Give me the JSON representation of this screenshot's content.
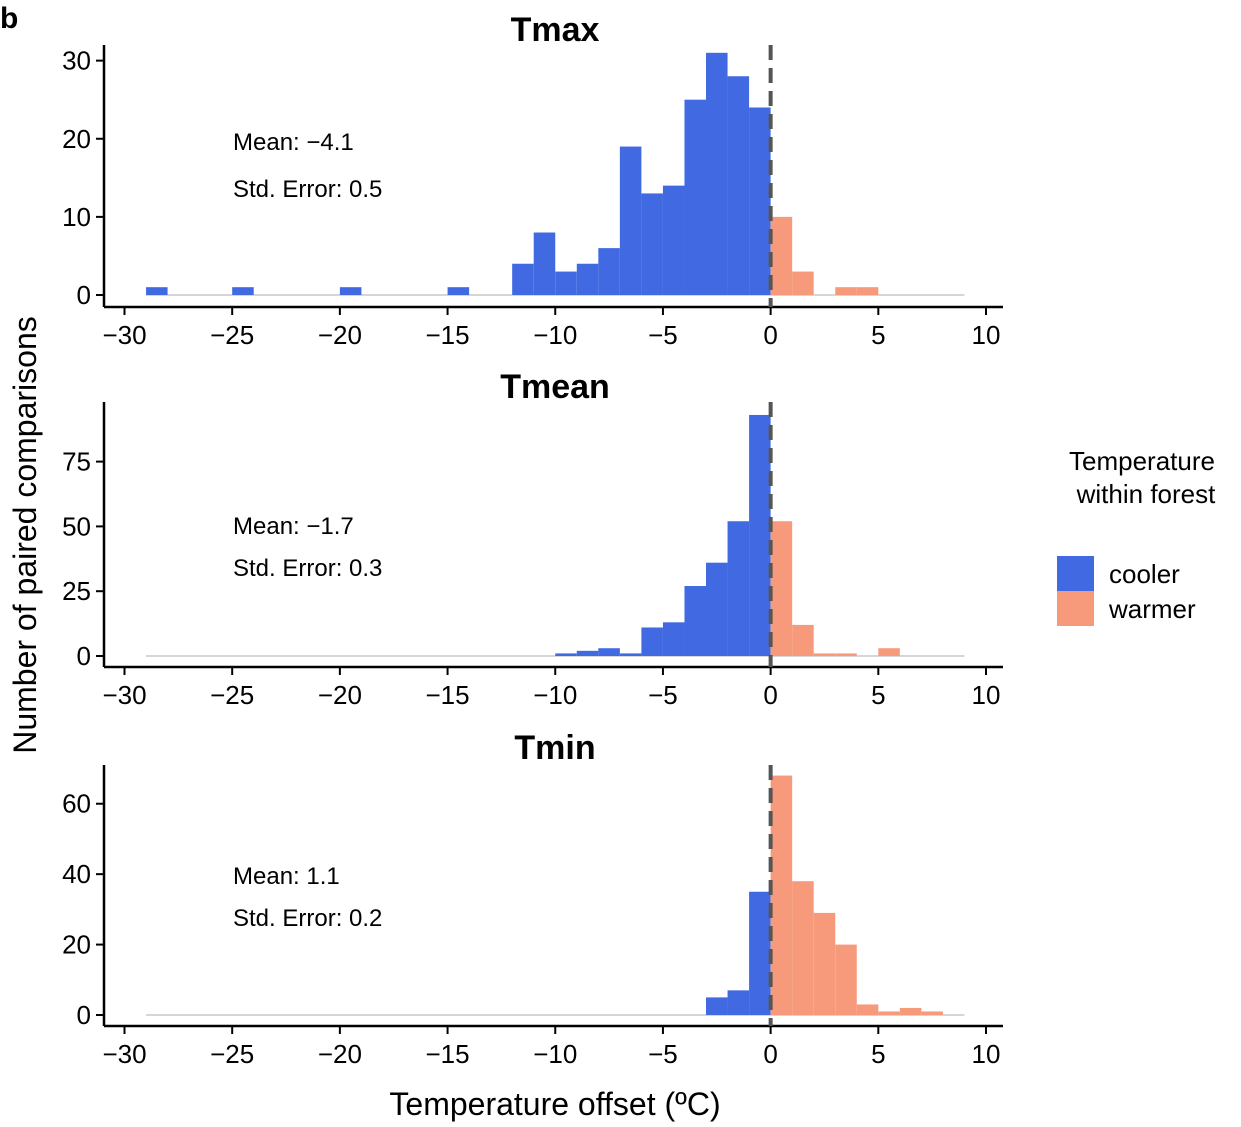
{
  "panel_label": "b",
  "colors": {
    "cooler": "#4169E1",
    "warmer": "#F79A7C",
    "baseline": "#c8c8c8",
    "zero_line": "#555555"
  },
  "legend": {
    "title_line1": "Temperature",
    "title_line2": "within forest",
    "items": [
      "cooler",
      "warmer"
    ]
  },
  "chart_data": [
    {
      "type": "bar",
      "title": "Tmax",
      "xlabel": "Temperature offset (ºC)",
      "ylabel": "Number of paired comparisons",
      "xlim": [
        -30,
        10
      ],
      "x_ticks": [
        -30,
        -25,
        -20,
        -15,
        -10,
        -5,
        0,
        5,
        10
      ],
      "ylim": [
        0,
        32
      ],
      "y_ticks": [
        0,
        10,
        20,
        30
      ],
      "baseline": [
        -29,
        9
      ],
      "bin_width": 1,
      "bins": [
        {
          "x": -29,
          "value": 1,
          "group": "cooler"
        },
        {
          "x": -25,
          "value": 1,
          "group": "cooler"
        },
        {
          "x": -20,
          "value": 1,
          "group": "cooler"
        },
        {
          "x": -15,
          "value": 1,
          "group": "cooler"
        },
        {
          "x": -12,
          "value": 4,
          "group": "cooler"
        },
        {
          "x": -11,
          "value": 8,
          "group": "cooler"
        },
        {
          "x": -10,
          "value": 3,
          "group": "cooler"
        },
        {
          "x": -9,
          "value": 4,
          "group": "cooler"
        },
        {
          "x": -8,
          "value": 6,
          "group": "cooler"
        },
        {
          "x": -7,
          "value": 19,
          "group": "cooler"
        },
        {
          "x": -6,
          "value": 13,
          "group": "cooler"
        },
        {
          "x": -5,
          "value": 14,
          "group": "cooler"
        },
        {
          "x": -4,
          "value": 25,
          "group": "cooler"
        },
        {
          "x": -3,
          "value": 31,
          "group": "cooler"
        },
        {
          "x": -2,
          "value": 28,
          "group": "cooler"
        },
        {
          "x": -1,
          "value": 24,
          "group": "cooler"
        },
        {
          "x": 0,
          "value": 10,
          "group": "warmer"
        },
        {
          "x": 1,
          "value": 3,
          "group": "warmer"
        },
        {
          "x": 3,
          "value": 1,
          "group": "warmer"
        },
        {
          "x": 4,
          "value": 1,
          "group": "warmer"
        }
      ],
      "annotations": [
        "Mean: −4.1",
        "Std. Error: 0.5"
      ]
    },
    {
      "type": "bar",
      "title": "Tmean",
      "xlabel": "Temperature offset (ºC)",
      "ylabel": "Number of paired comparisons",
      "xlim": [
        -30,
        10
      ],
      "x_ticks": [
        -30,
        -25,
        -20,
        -15,
        -10,
        -5,
        0,
        5,
        10
      ],
      "ylim": [
        0,
        98
      ],
      "y_ticks": [
        0,
        25,
        50,
        75
      ],
      "baseline": [
        -29,
        9
      ],
      "bin_width": 1,
      "bins": [
        {
          "x": -10,
          "value": 1,
          "group": "cooler"
        },
        {
          "x": -9,
          "value": 2,
          "group": "cooler"
        },
        {
          "x": -8,
          "value": 3,
          "group": "cooler"
        },
        {
          "x": -7,
          "value": 1,
          "group": "cooler"
        },
        {
          "x": -6,
          "value": 11,
          "group": "cooler"
        },
        {
          "x": -5,
          "value": 13,
          "group": "cooler"
        },
        {
          "x": -4,
          "value": 27,
          "group": "cooler"
        },
        {
          "x": -3,
          "value": 36,
          "group": "cooler"
        },
        {
          "x": -2,
          "value": 52,
          "group": "cooler"
        },
        {
          "x": -1,
          "value": 93,
          "group": "cooler"
        },
        {
          "x": 0,
          "value": 52,
          "group": "warmer"
        },
        {
          "x": 1,
          "value": 12,
          "group": "warmer"
        },
        {
          "x": 2,
          "value": 1,
          "group": "warmer"
        },
        {
          "x": 3,
          "value": 1,
          "group": "warmer"
        },
        {
          "x": 5,
          "value": 3,
          "group": "warmer"
        }
      ],
      "annotations": [
        "Mean: −1.7",
        "Std. Error: 0.3"
      ]
    },
    {
      "type": "bar",
      "title": "Tmin",
      "xlabel": "Temperature offset (ºC)",
      "ylabel": "Number of paired comparisons",
      "xlim": [
        -30,
        10
      ],
      "x_ticks": [
        -30,
        -25,
        -20,
        -15,
        -10,
        -5,
        0,
        5,
        10
      ],
      "ylim": [
        0,
        71
      ],
      "y_ticks": [
        0,
        20,
        40,
        60
      ],
      "baseline": [
        -29,
        9
      ],
      "bin_width": 1,
      "bins": [
        {
          "x": -3,
          "value": 5,
          "group": "cooler"
        },
        {
          "x": -2,
          "value": 7,
          "group": "cooler"
        },
        {
          "x": -1,
          "value": 35,
          "group": "cooler"
        },
        {
          "x": 0,
          "value": 68,
          "group": "warmer"
        },
        {
          "x": 1,
          "value": 38,
          "group": "warmer"
        },
        {
          "x": 2,
          "value": 29,
          "group": "warmer"
        },
        {
          "x": 3,
          "value": 20,
          "group": "warmer"
        },
        {
          "x": 4,
          "value": 3,
          "group": "warmer"
        },
        {
          "x": 5,
          "value": 1,
          "group": "warmer"
        },
        {
          "x": 6,
          "value": 2,
          "group": "warmer"
        },
        {
          "x": 7,
          "value": 1,
          "group": "warmer"
        }
      ],
      "annotations": [
        "Mean: 1.1",
        "Std. Error: 0.2"
      ]
    }
  ]
}
